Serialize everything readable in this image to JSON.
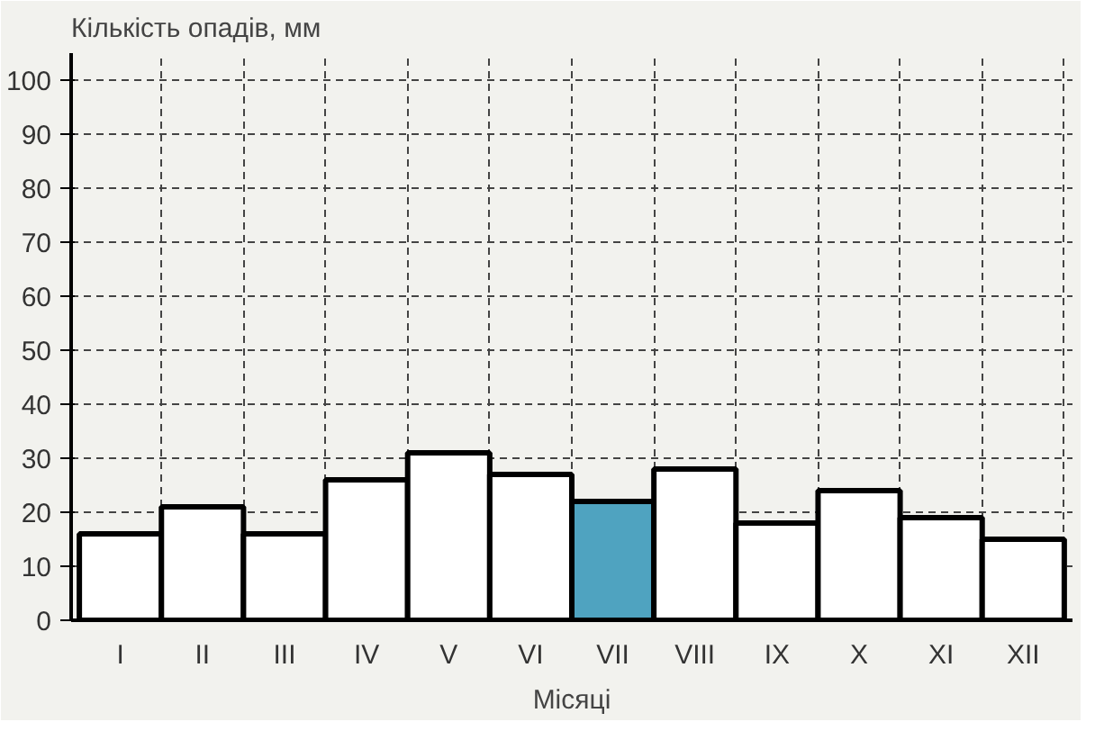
{
  "chart_data": {
    "type": "bar",
    "ylabel": "Кількість опадів, мм",
    "xlabel": "Місяці",
    "categories": [
      "I",
      "II",
      "III",
      "IV",
      "V",
      "VI",
      "VII",
      "VIII",
      "IX",
      "X",
      "XI",
      "XII"
    ],
    "values": [
      16,
      21,
      16,
      26,
      31,
      27,
      22,
      28,
      18,
      24,
      19,
      15
    ],
    "colors": [
      "#ffffff",
      "#ffffff",
      "#ffffff",
      "#ffffff",
      "#ffffff",
      "#ffffff",
      "#4fa3c0",
      "#ffffff",
      "#ffffff",
      "#ffffff",
      "#ffffff",
      "#ffffff"
    ],
    "ylim": [
      0,
      105
    ],
    "yticks": [
      0,
      10,
      20,
      30,
      40,
      50,
      60,
      70,
      80,
      90,
      100
    ],
    "grid": true
  }
}
